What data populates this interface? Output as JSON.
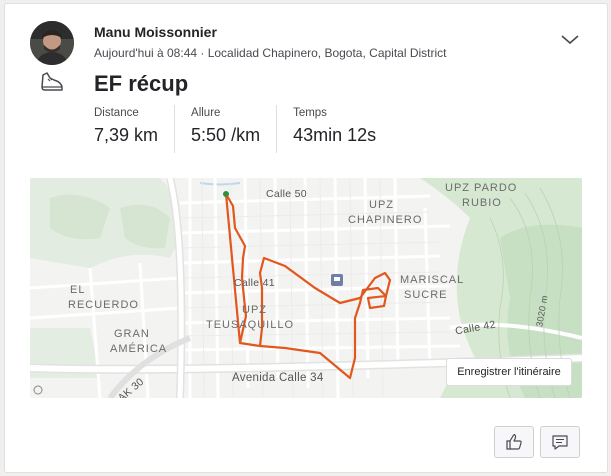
{
  "activity": {
    "athlete_name": "Manu Moissonnier",
    "meta": "Aujourd'hui à 08:44 · Localidad Chapinero, Bogota, Capital District",
    "title": "EF récup",
    "stats": [
      {
        "label": "Distance",
        "value": "7,39 km"
      },
      {
        "label": "Allure",
        "value": "5:50 /km"
      },
      {
        "label": "Temps",
        "value": "43min 12s"
      }
    ]
  },
  "map": {
    "labels": {
      "upz_pardo_rubio_1": "UPZ PARDO",
      "upz_pardo_rubio_2": "RUBIO",
      "upz_chapinero_1": "UPZ",
      "upz_chapinero_2": "CHAPINERO",
      "el_recuerdo_1": "EL",
      "el_recuerdo_2": "RECUERDO",
      "gran_america_1": "GRAN",
      "gran_america_2": "AMÉRICA",
      "upz_teusaquillo_1": "UPZ",
      "upz_teusaquillo_2": "TEUSAQUILLO",
      "mariscal_sucre_1": "MARISCAL",
      "mariscal_sucre_2": "SUCRE",
      "calle_50": "Calle 50",
      "calle_41": "Calle 41",
      "calle_42": "Calle 42",
      "avenida_calle_34": "Avenida Calle 34",
      "ak_30": "AK 30",
      "contour_3020": "3020 m"
    },
    "route_color": "#e2571e",
    "save_route_label": "Enregistrer l'itinéraire"
  },
  "icons": {
    "sport": "running-shoe-icon",
    "menu": "chevron-down-icon",
    "kudos": "thumbs-up-icon",
    "comment": "comment-icon"
  }
}
